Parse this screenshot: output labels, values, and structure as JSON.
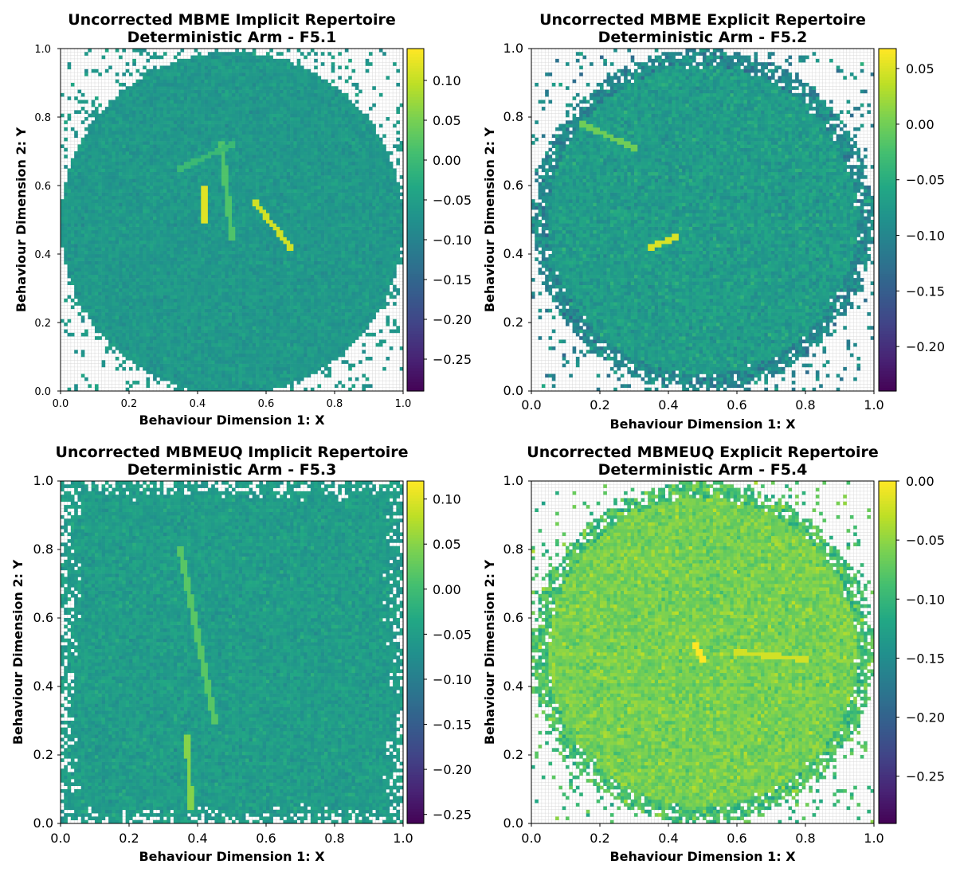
{
  "chart_data": [
    {
      "type": "heatmap",
      "title": [
        "Uncorrected MBME Implicit Repertoire",
        "Deterministic Arm - F5.1"
      ],
      "xlabel": "Behaviour Dimension 1: X",
      "ylabel": "Behaviour Dimension 2: Y",
      "xlim": [
        0.0,
        1.0
      ],
      "ylim": [
        0.0,
        1.0
      ],
      "xticks": [
        "0.0",
        "0.2",
        "0.4",
        "0.6",
        "0.8",
        "1.0"
      ],
      "yticks": [
        "0.0",
        "0.2",
        "0.4",
        "0.6",
        "0.8",
        "1.0"
      ],
      "colormap": "viridis",
      "colorbar_range": [
        -0.29,
        0.14
      ],
      "colorbar_ticks": [
        "0.10",
        "0.05",
        "0.00",
        "−0.05",
        "−0.10",
        "−0.15",
        "−0.20",
        "−0.25"
      ],
      "grid": true,
      "cells": {
        "shape": "disc",
        "center": [
          0.5,
          0.49
        ],
        "radius": 0.5,
        "typical_value": -0.06,
        "highlights": [
          {
            "from": [
              0.42,
              0.5
            ],
            "to": [
              0.42,
              0.59
            ],
            "value": 0.12
          },
          {
            "from": [
              0.57,
              0.55
            ],
            "to": [
              0.67,
              0.42
            ],
            "value": 0.11
          },
          {
            "from": [
              0.47,
              0.72
            ],
            "to": [
              0.5,
              0.45
            ],
            "value": 0.02
          },
          {
            "from": [
              0.35,
              0.65
            ],
            "to": [
              0.5,
              0.72
            ],
            "value": 0.0
          }
        ]
      }
    },
    {
      "type": "heatmap",
      "title": [
        "Uncorrected MBME Explicit Repertoire",
        "Deterministic Arm - F5.2"
      ],
      "xlabel": "Behaviour Dimension 1: X",
      "ylabel": "Behaviour Dimension 2: Y",
      "xlim": [
        0.0,
        1.0
      ],
      "ylim": [
        0.0,
        1.0
      ],
      "xticks": [
        "0.0",
        "0.2",
        "0.4",
        "0.6",
        "0.8",
        "1.0"
      ],
      "yticks": [
        "0.0",
        "0.2",
        "0.4",
        "0.6",
        "0.8",
        "1.0"
      ],
      "colormap": "viridis",
      "colorbar_range": [
        -0.24,
        0.068
      ],
      "colorbar_ticks": [
        "0.05",
        "0.00",
        "−0.05",
        "−0.10",
        "−0.15",
        "−0.20"
      ],
      "grid": true,
      "cells": {
        "shape": "disc",
        "center": [
          0.5,
          0.5
        ],
        "radius": 0.5,
        "typical_value": -0.07,
        "highlights": [
          {
            "from": [
              0.35,
              0.42
            ],
            "to": [
              0.42,
              0.45
            ],
            "value": 0.05
          },
          {
            "from": [
              0.15,
              0.78
            ],
            "to": [
              0.3,
              0.71
            ],
            "value": 0.0
          }
        ]
      }
    },
    {
      "type": "heatmap",
      "title": [
        "Uncorrected MBMEUQ Implicit Repertoire",
        "Deterministic Arm - F5.3"
      ],
      "xlabel": "Behaviour Dimension 1: X",
      "ylabel": "Behaviour Dimension 2: Y",
      "xlim": [
        0.0,
        1.0
      ],
      "ylim": [
        0.0,
        1.0
      ],
      "xticks": [
        "0.0",
        "0.2",
        "0.4",
        "0.6",
        "0.8",
        "1.0"
      ],
      "yticks": [
        "0.0",
        "0.2",
        "0.4",
        "0.6",
        "0.8",
        "1.0"
      ],
      "colormap": "viridis",
      "colorbar_range": [
        -0.26,
        0.12
      ],
      "colorbar_ticks": [
        "0.10",
        "0.05",
        "0.00",
        "−0.05",
        "−0.10",
        "−0.15",
        "−0.20",
        "−0.25"
      ],
      "grid": true,
      "cells": {
        "shape": "square",
        "typical_value": -0.05,
        "highlights": [
          {
            "from": [
              0.37,
              0.25
            ],
            "to": [
              0.38,
              0.05
            ],
            "value": 0.05
          },
          {
            "from": [
              0.35,
              0.8
            ],
            "to": [
              0.45,
              0.3
            ],
            "value": 0.02
          }
        ]
      }
    },
    {
      "type": "heatmap",
      "title": [
        "Uncorrected MBMEUQ Explicit Repertoire",
        "Deterministic Arm - F5.4"
      ],
      "xlabel": "Behaviour Dimension 1: X",
      "ylabel": "Behaviour Dimension 2: Y",
      "xlim": [
        0.0,
        1.0
      ],
      "ylim": [
        0.0,
        1.0
      ],
      "xticks": [
        "0.0",
        "0.2",
        "0.4",
        "0.6",
        "0.8",
        "1.0"
      ],
      "yticks": [
        "0.0",
        "0.2",
        "0.4",
        "0.6",
        "0.8",
        "1.0"
      ],
      "colormap": "viridis",
      "colorbar_range": [
        -0.29,
        0.0
      ],
      "colorbar_ticks": [
        "0.00",
        "−0.05",
        "−0.10",
        "−0.15",
        "−0.20",
        "−0.25"
      ],
      "grid": true,
      "cells": {
        "shape": "disc",
        "center": [
          0.5,
          0.5
        ],
        "radius": 0.5,
        "typical_value": -0.06,
        "highlights": [
          {
            "from": [
              0.48,
              0.52
            ],
            "to": [
              0.5,
              0.48
            ],
            "value": 0.0
          },
          {
            "from": [
              0.6,
              0.5
            ],
            "to": [
              0.8,
              0.48
            ],
            "value": -0.02
          }
        ]
      }
    }
  ]
}
